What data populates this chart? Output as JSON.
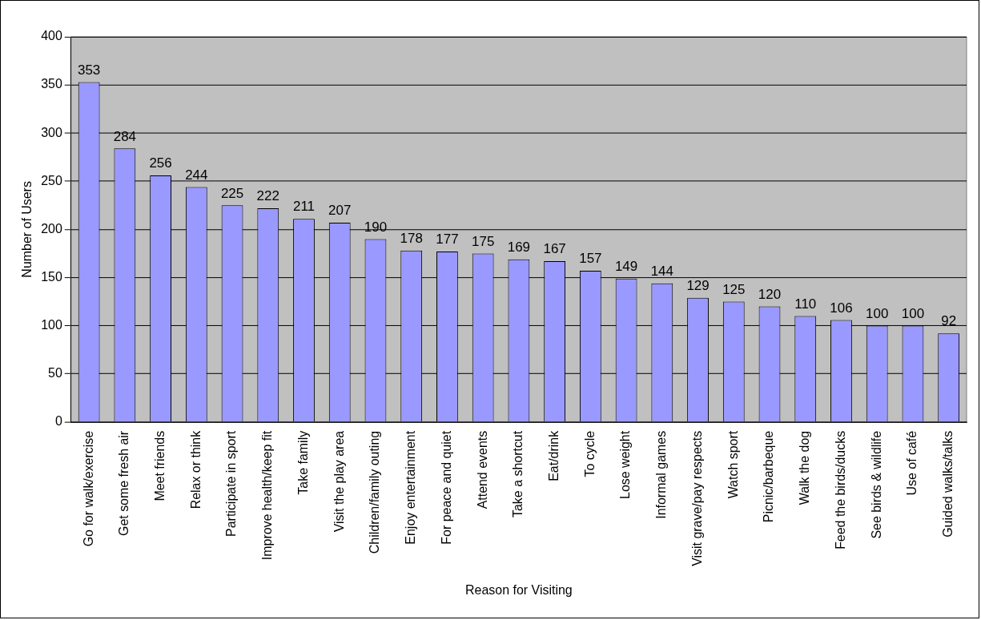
{
  "chart_data": {
    "type": "bar",
    "xlabel": "Reason for Visiting",
    "ylabel": "Number of Users",
    "categories": [
      "Go for walk/exercise",
      "Get some fresh air",
      "Meet friends",
      "Relax or think",
      "Participate in sport",
      "Improve health/keep fit",
      "Take family",
      "Visit the play area",
      "Children/family outing",
      "Enjoy entertainment",
      "For peace and quiet",
      "Attend events",
      "Take a shortcut",
      "Eat/drink",
      "To cycle",
      "Lose weight",
      "Informal games",
      "Visit grave/pay respects",
      "Watch sport",
      "Picnic/barbeque",
      "Walk the dog",
      "Feed the birds/ducks",
      "See birds & wildlife",
      "Use of café",
      "Guided walks/talks"
    ],
    "values": [
      353,
      284,
      256,
      244,
      225,
      222,
      211,
      207,
      190,
      178,
      177,
      175,
      169,
      167,
      157,
      149,
      144,
      129,
      125,
      120,
      110,
      106,
      100,
      100,
      92
    ],
    "color": "#9999ff",
    "ylim": [
      0,
      400
    ],
    "yticks": [
      0,
      50,
      100,
      150,
      200,
      250,
      300,
      350,
      400
    ],
    "grid": "y",
    "data_labels": true,
    "legend": false
  }
}
